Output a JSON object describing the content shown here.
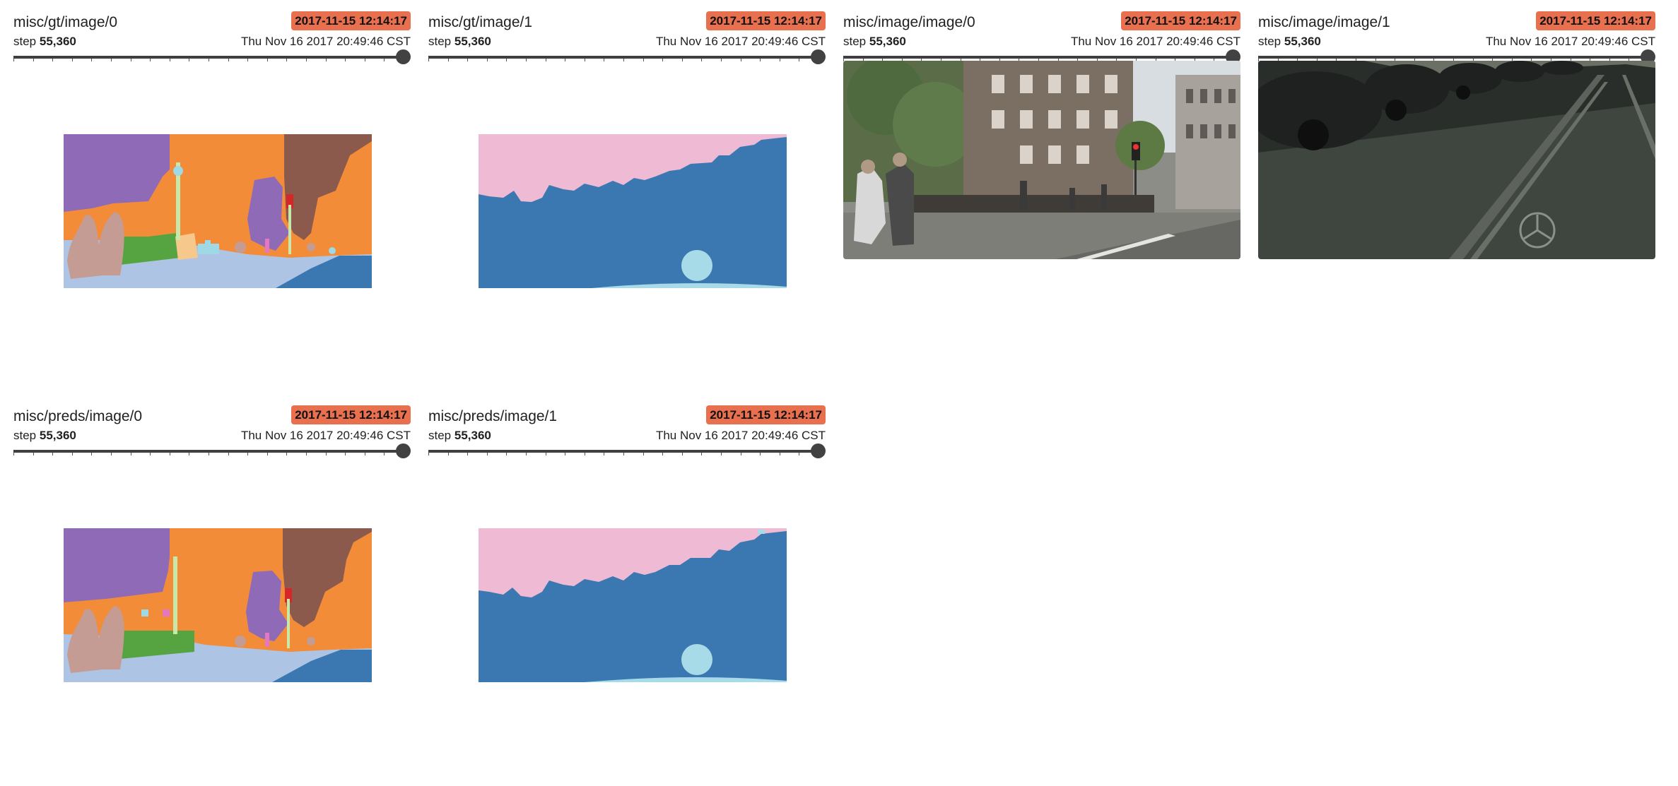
{
  "cards": [
    {
      "tag": "misc/gt/image/0",
      "run": "2017-11-15 12:14:17",
      "step_label": "step",
      "step": "55,360",
      "wall_time": "Thu Nov 16 2017 20:49:46 CST",
      "image_kind": "segmentation-map-0"
    },
    {
      "tag": "misc/gt/image/1",
      "run": "2017-11-15 12:14:17",
      "step_label": "step",
      "step": "55,360",
      "wall_time": "Thu Nov 16 2017 20:49:46 CST",
      "image_kind": "segmentation-map-1"
    },
    {
      "tag": "misc/image/image/0",
      "run": "2017-11-15 12:14:17",
      "step_label": "step",
      "step": "55,360",
      "wall_time": "Thu Nov 16 2017 20:49:46 CST",
      "image_kind": "street-photo-0"
    },
    {
      "tag": "misc/image/image/1",
      "run": "2017-11-15 12:14:17",
      "step_label": "step",
      "step": "55,360",
      "wall_time": "Thu Nov 16 2017 20:49:46 CST",
      "image_kind": "street-photo-1"
    },
    {
      "tag": "misc/preds/image/0",
      "run": "2017-11-15 12:14:17",
      "step_label": "step",
      "step": "55,360",
      "wall_time": "Thu Nov 16 2017 20:49:46 CST",
      "image_kind": "segmentation-map-0"
    },
    {
      "tag": "misc/preds/image/1",
      "run": "2017-11-15 12:14:17",
      "step_label": "step",
      "step": "55,360",
      "wall_time": "Thu Nov 16 2017 20:49:46 CST",
      "image_kind": "segmentation-map-1"
    }
  ],
  "slider_position": 1.0,
  "colors": {
    "run_badge": "#e8704f",
    "slider": "#424242"
  }
}
